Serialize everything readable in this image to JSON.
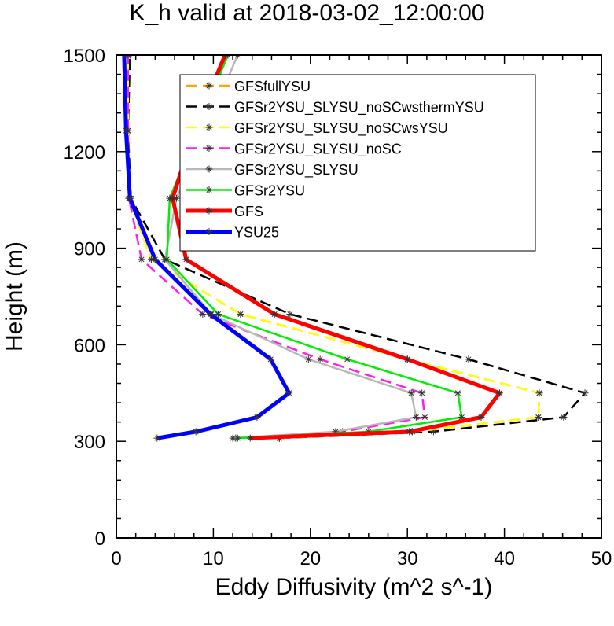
{
  "chart_data": {
    "type": "line",
    "title": "K_h valid at 2018-03-02_12:00:00",
    "xlabel": "Eddy Diffusivity (m^2 s^-1)",
    "ylabel": "Height (m)",
    "xlim": [
      0,
      50
    ],
    "ylim": [
      0,
      1500
    ],
    "xticks": [
      0,
      10,
      20,
      30,
      40,
      50
    ],
    "yticks": [
      0,
      300,
      600,
      900,
      1200,
      1500
    ],
    "grid": false,
    "legend_position": "top-right",
    "heights": [
      310,
      330,
      375,
      450,
      555,
      695,
      865,
      1055,
      1265,
      1500
    ],
    "series": [
      {
        "name": "GFSfullYSU",
        "color": "#ffa500",
        "dash": "long",
        "width": 2.5,
        "values": [
          16.8,
          30.5,
          43.5,
          43.6,
          30,
          12.8,
          3.6,
          1.3,
          1.2,
          1.2
        ]
      },
      {
        "name": "GFSr2YSU_SLYSU_noSCwsthermYSU",
        "color": "#000000",
        "dash": "long",
        "width": 2.5,
        "values": [
          16.8,
          32.7,
          46.1,
          48.3,
          36.3,
          17.9,
          5.0,
          1.5,
          1.2,
          1.4
        ]
      },
      {
        "name": "GFSr2YSU_SLYSU_noSCwsYSU",
        "color": "#ffff00",
        "dash": "long",
        "width": 2.5,
        "values": [
          16.8,
          30.5,
          43.5,
          43.6,
          30,
          12.8,
          3.6,
          1.3,
          1.2,
          1.2
        ]
      },
      {
        "name": "GFSr2YSU_SLYSU_noSC",
        "color": "#ff1fe8",
        "dash": "long",
        "width": 2.5,
        "values": [
          12.3,
          23.3,
          31.8,
          31.5,
          21,
          8.9,
          2.6,
          1.3,
          1.2,
          1.2
        ]
      },
      {
        "name": "GFSr2YSU_SLYSU",
        "color": "#b8b8b8",
        "dash": "solid",
        "width": 2.5,
        "values": [
          12.0,
          22.6,
          30.9,
          30.4,
          19.8,
          9.8,
          5.0,
          6.2,
          9.2,
          12.5
        ]
      },
      {
        "name": "GFSr2YSU",
        "color": "#00ee00",
        "dash": "solid",
        "width": 2.5,
        "values": [
          12.5,
          26.0,
          35.6,
          35.2,
          23.8,
          10.5,
          5.2,
          5.5,
          8.3,
          11.5
        ]
      },
      {
        "name": "GFS",
        "color": "#ff0000",
        "dash": "solid",
        "width": 5,
        "values": [
          13.8,
          30.2,
          37.6,
          39.5,
          30.0,
          16.3,
          7.2,
          5.8,
          8.0,
          11.2
        ]
      },
      {
        "name": "YSU25",
        "color": "#0000ff",
        "dash": "solid",
        "width": 5,
        "values": [
          4.2,
          8.2,
          14.5,
          17.8,
          15.9,
          9.7,
          4.0,
          1.4,
          1.0,
          0.8
        ]
      }
    ]
  }
}
